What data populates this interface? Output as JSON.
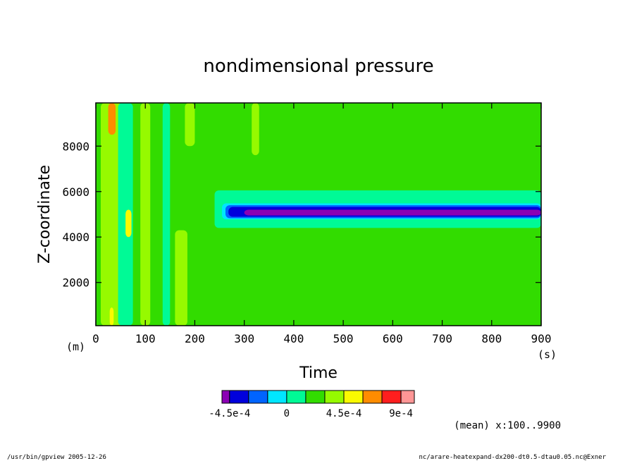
{
  "chart_data": {
    "type": "heatmap",
    "title": "nondimensional pressure",
    "xlabel": "Time",
    "ylabel": "Z-coordinate",
    "x_unit": "(s)",
    "y_unit": "(m)",
    "xlim": [
      0,
      900
    ],
    "ylim": [
      100,
      9900
    ],
    "x_ticks": [
      "0",
      "100",
      "200",
      "300",
      "400",
      "500",
      "600",
      "700",
      "800",
      "900"
    ],
    "y_ticks": [
      "2000",
      "4000",
      "6000",
      "8000"
    ],
    "x_tick_values": [
      0,
      100,
      200,
      300,
      400,
      500,
      600,
      700,
      800,
      900
    ],
    "y_tick_values": [
      2000,
      4000,
      6000,
      8000
    ],
    "colorbar": {
      "levels": [
        -0.0006,
        -0.00045,
        -0.0003,
        -0.00015,
        0,
        0.00015,
        0.0003,
        0.00045,
        0.0006,
        0.00075,
        0.0009,
        0.00105
      ],
      "colors": [
        "#8b00b4",
        "#0000dc",
        "#0064ff",
        "#00e6ff",
        "#00fa96",
        "#32dc00",
        "#96fa00",
        "#fafa00",
        "#ff8c00",
        "#ff1e1e",
        "#ff9696"
      ],
      "tick_labels": [
        "-4.5e-4",
        "0",
        "4.5e-4",
        "9e-4"
      ],
      "tick_values": [
        -0.00045,
        0,
        0.00045,
        0.0009
      ]
    },
    "background_level": "#32dc00",
    "features": [
      {
        "x": [
          240,
          900
        ],
        "y": [
          4400,
          6050
        ],
        "color": "#00fa96"
      },
      {
        "x": [
          255,
          900
        ],
        "y": [
          4780,
          5480
        ],
        "color": "#00e6ff"
      },
      {
        "x": [
          262,
          900
        ],
        "y": [
          4830,
          5400
        ],
        "color": "#0064ff"
      },
      {
        "x": [
          268,
          900
        ],
        "y": [
          4890,
          5320
        ],
        "color": "#0000dc"
      },
      {
        "x": [
          300,
          900
        ],
        "y": [
          4950,
          5200
        ],
        "color": "#8b00b4"
      },
      {
        "x": [
          10,
          55
        ],
        "y": [
          100,
          9900
        ],
        "color": "#96fa00"
      },
      {
        "x": [
          25,
          40
        ],
        "y": [
          8500,
          9900
        ],
        "color": "#ff8c00"
      },
      {
        "x": [
          28,
          36
        ],
        "y": [
          100,
          900
        ],
        "color": "#fafa00"
      },
      {
        "x": [
          45,
          75
        ],
        "y": [
          100,
          9900
        ],
        "color": "#00fa96"
      },
      {
        "x": [
          60,
          72
        ],
        "y": [
          4000,
          5200
        ],
        "color": "#fafa00"
      },
      {
        "x": [
          90,
          110
        ],
        "y": [
          100,
          9900
        ],
        "color": "#96fa00"
      },
      {
        "x": [
          135,
          150
        ],
        "y": [
          100,
          9900
        ],
        "color": "#00fa96"
      },
      {
        "x": [
          180,
          200
        ],
        "y": [
          8000,
          9900
        ],
        "color": "#96fa00"
      },
      {
        "x": [
          160,
          185
        ],
        "y": [
          100,
          4300
        ],
        "color": "#96fa00"
      },
      {
        "x": [
          315,
          330
        ],
        "y": [
          7600,
          9900
        ],
        "color": "#96fa00"
      }
    ],
    "annotation": "(mean) x:100..9900"
  },
  "footer": {
    "left": "/usr/bin/gpview   2005-12-26",
    "right": "nc/arare-heatexpand-dx200-dt0.5-dtau0.05.nc@Exner"
  }
}
